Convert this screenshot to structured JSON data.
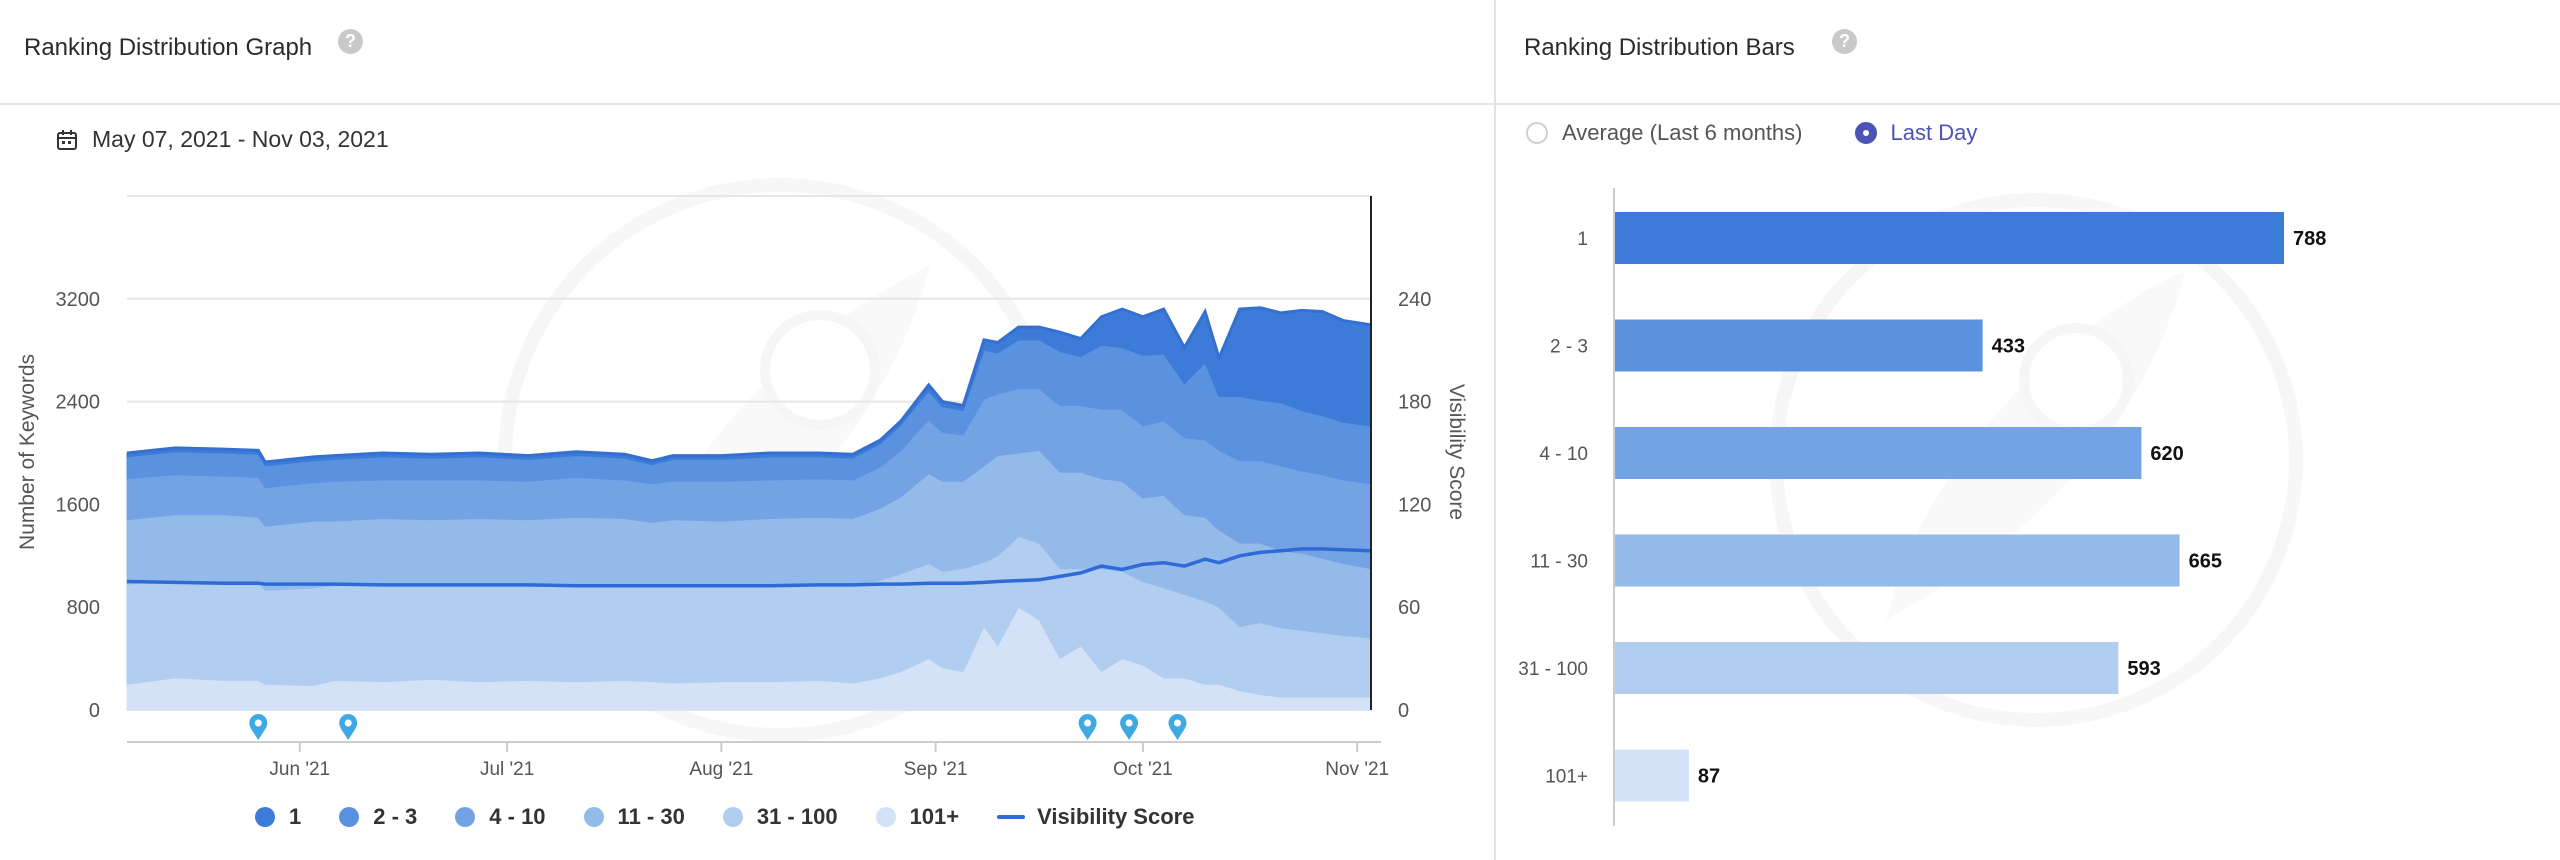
{
  "left_panel": {
    "title": "Ranking Distribution Graph",
    "help_icon": "question-circle-icon",
    "date_range": "May 07, 2021 - Nov 03, 2021",
    "calendar_icon": "calendar-icon"
  },
  "right_panel": {
    "title": "Ranking Distribution Bars",
    "help_icon": "question-circle-icon",
    "radio_options": [
      {
        "label": "Average (Last 6 months)",
        "selected": false
      },
      {
        "label": "Last Day",
        "selected": true
      }
    ]
  },
  "chart_data": [
    {
      "type": "area",
      "stacked": true,
      "ylabel": "Number of Keywords",
      "y2label": "Visibility Score",
      "ylim": [
        0,
        4000
      ],
      "y2lim": [
        0,
        300
      ],
      "yticks": [
        "0",
        "800",
        "1600",
        "2400",
        "3200"
      ],
      "y2ticks": [
        "0",
        "60",
        "120",
        "180",
        "240"
      ],
      "xlim": [
        "2021-05-07",
        "2021-11-03"
      ],
      "xticks": [
        {
          "date": "2021-06-01",
          "label": "Jun '21"
        },
        {
          "date": "2021-07-01",
          "label": "Jul '21"
        },
        {
          "date": "2021-08-01",
          "label": "Aug '21"
        },
        {
          "date": "2021-09-01",
          "label": "Sep '21"
        },
        {
          "date": "2021-10-01",
          "label": "Oct '21"
        },
        {
          "date": "2021-11-01",
          "label": "Nov '21"
        }
      ],
      "grid": true,
      "legend_position": "bottom",
      "dates": [
        "2021-05-07",
        "2021-05-14",
        "2021-05-21",
        "2021-05-26",
        "2021-05-27",
        "2021-06-03",
        "2021-06-06",
        "2021-06-13",
        "2021-06-20",
        "2021-06-27",
        "2021-07-04",
        "2021-07-11",
        "2021-07-18",
        "2021-07-22",
        "2021-07-25",
        "2021-08-01",
        "2021-08-08",
        "2021-08-15",
        "2021-08-20",
        "2021-08-24",
        "2021-08-27",
        "2021-08-31",
        "2021-09-02",
        "2021-09-05",
        "2021-09-08",
        "2021-09-10",
        "2021-09-13",
        "2021-09-16",
        "2021-09-19",
        "2021-09-22",
        "2021-09-25",
        "2021-09-28",
        "2021-10-01",
        "2021-10-04",
        "2021-10-07",
        "2021-10-10",
        "2021-10-12",
        "2021-10-15",
        "2021-10-18",
        "2021-10-21",
        "2021-10-24",
        "2021-10-27",
        "2021-10-30",
        "2021-11-03"
      ],
      "series": [
        {
          "name": "101+",
          "color": "#d3e2f7",
          "values": [
            200,
            250,
            230,
            230,
            200,
            190,
            230,
            220,
            240,
            220,
            230,
            220,
            230,
            220,
            210,
            220,
            220,
            230,
            210,
            250,
            300,
            400,
            330,
            300,
            650,
            500,
            800,
            700,
            400,
            500,
            300,
            400,
            350,
            250,
            250,
            200,
            200,
            150,
            120,
            100,
            100,
            100,
            100,
            100
          ]
        },
        {
          "name": "31 - 100",
          "color": "#b1cdf0",
          "values": [
            780,
            760,
            770,
            770,
            730,
            760,
            740,
            760,
            740,
            760,
            750,
            760,
            750,
            740,
            760,
            750,
            760,
            760,
            760,
            760,
            760,
            740,
            750,
            800,
            500,
            700,
            550,
            600,
            700,
            600,
            800,
            680,
            650,
            700,
            650,
            650,
            600,
            500,
            560,
            540,
            520,
            500,
            480,
            460
          ]
        },
        {
          "name": "11 - 30",
          "color": "#94baea",
          "values": [
            500,
            510,
            520,
            500,
            500,
            520,
            500,
            510,
            500,
            510,
            500,
            520,
            510,
            500,
            510,
            500,
            510,
            510,
            520,
            560,
            600,
            700,
            700,
            680,
            750,
            780,
            650,
            720,
            750,
            750,
            700,
            700,
            650,
            720,
            620,
            650,
            600,
            650,
            620,
            600,
            600,
            580,
            560,
            540
          ]
        },
        {
          "name": "4 - 10",
          "color": "#73a3e4",
          "values": [
            320,
            310,
            300,
            310,
            300,
            300,
            310,
            300,
            310,
            300,
            300,
            310,
            300,
            300,
            300,
            310,
            300,
            300,
            300,
            320,
            360,
            420,
            380,
            360,
            520,
            480,
            500,
            480,
            520,
            520,
            540,
            560,
            560,
            580,
            600,
            600,
            620,
            640,
            640,
            660,
            640,
            650,
            650,
            660
          ]
        },
        {
          "name": "2 - 3",
          "color": "#5a92df",
          "values": [
            170,
            180,
            180,
            180,
            170,
            170,
            170,
            180,
            170,
            180,
            170,
            170,
            170,
            150,
            170,
            170,
            180,
            170,
            170,
            180,
            200,
            220,
            200,
            190,
            380,
            320,
            380,
            380,
            420,
            380,
            500,
            480,
            550,
            520,
            420,
            600,
            420,
            500,
            470,
            490,
            470,
            460,
            450,
            450
          ]
        },
        {
          "name": "1",
          "color": "#3d7bd8",
          "values": [
            30,
            30,
            30,
            30,
            30,
            30,
            30,
            30,
            30,
            30,
            30,
            30,
            30,
            30,
            30,
            30,
            30,
            30,
            30,
            30,
            30,
            50,
            40,
            40,
            80,
            80,
            100,
            100,
            150,
            140,
            220,
            300,
            300,
            350,
            280,
            400,
            300,
            680,
            720,
            700,
            780,
            810,
            790,
            788
          ]
        }
      ],
      "visibility_score": {
        "name": "Visibility Score",
        "color": "#2e6bd6",
        "values": [
          75,
          74.5,
          74,
          74,
          73.5,
          73.5,
          73.5,
          73,
          73,
          73,
          73,
          72.5,
          72.5,
          72.5,
          72.5,
          72.5,
          72.5,
          73,
          73,
          73.5,
          73.5,
          74,
          74,
          74,
          74.5,
          75,
          75.5,
          76,
          78,
          80,
          84,
          82,
          85,
          86,
          84,
          88,
          86,
          90,
          92,
          93,
          94,
          94,
          93.5,
          93
        ]
      },
      "annotation_marker_icon": "map-pin-icon",
      "annotation_dates": [
        "2021-05-26",
        "2021-06-08",
        "2021-09-23",
        "2021-09-29",
        "2021-10-06"
      ]
    },
    {
      "type": "bar",
      "orientation": "horizontal",
      "categories": [
        "1",
        "2 - 3",
        "4 - 10",
        "11 - 30",
        "31 - 100",
        "101+"
      ],
      "values": [
        788,
        433,
        620,
        665,
        593,
        87
      ],
      "colors": [
        "#3d7bd8",
        "#5a92df",
        "#73a3e4",
        "#94baea",
        "#b1cdf0",
        "#d3e2f7"
      ],
      "xlim": [
        0,
        820
      ]
    }
  ]
}
